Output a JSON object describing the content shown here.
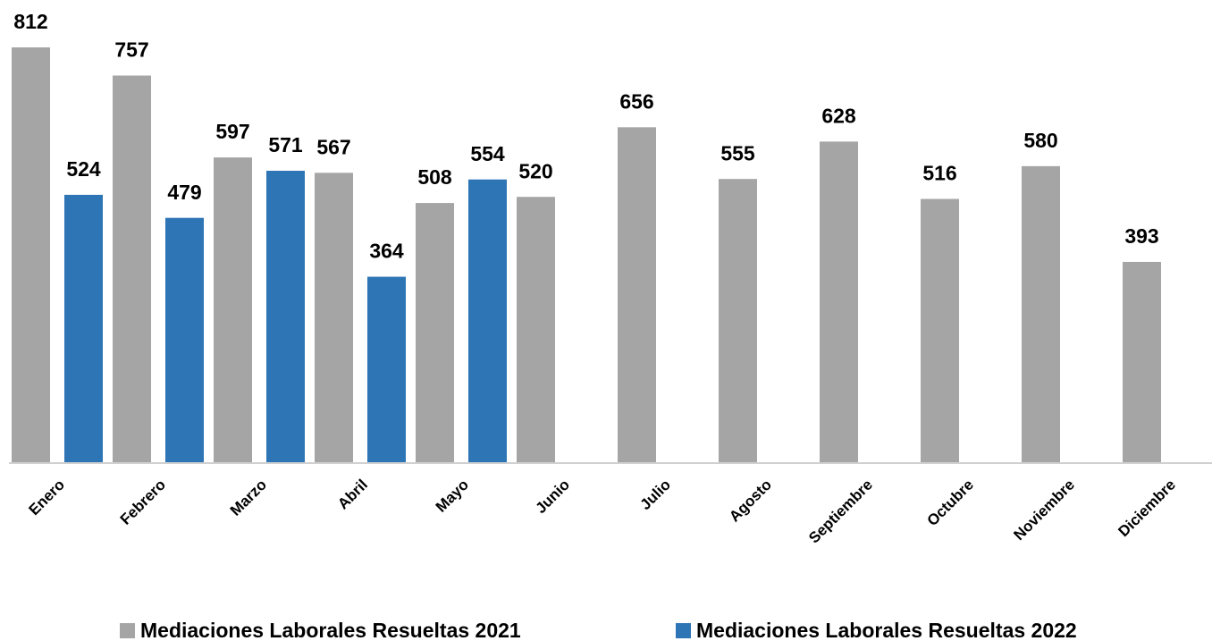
{
  "chart_data": {
    "type": "bar",
    "categories": [
      "Enero",
      "Febrero",
      "Marzo",
      "Abril",
      "Mayo",
      "Junio",
      "Julio",
      "Agosto",
      "Septiembre",
      "Octubre",
      "Noviembre",
      "Diciembre"
    ],
    "series": [
      {
        "name": "Mediaciones Laborales Resueltas 2021",
        "color": "#a5a5a5",
        "values": [
          812,
          757,
          597,
          567,
          508,
          520,
          656,
          555,
          628,
          516,
          580,
          393
        ]
      },
      {
        "name": "Mediaciones Laborales Resueltas 2022",
        "color": "#2e75b6",
        "values": [
          524,
          479,
          571,
          364,
          554,
          null,
          null,
          null,
          null,
          null,
          null,
          null
        ]
      }
    ],
    "legend": "bottom"
  }
}
